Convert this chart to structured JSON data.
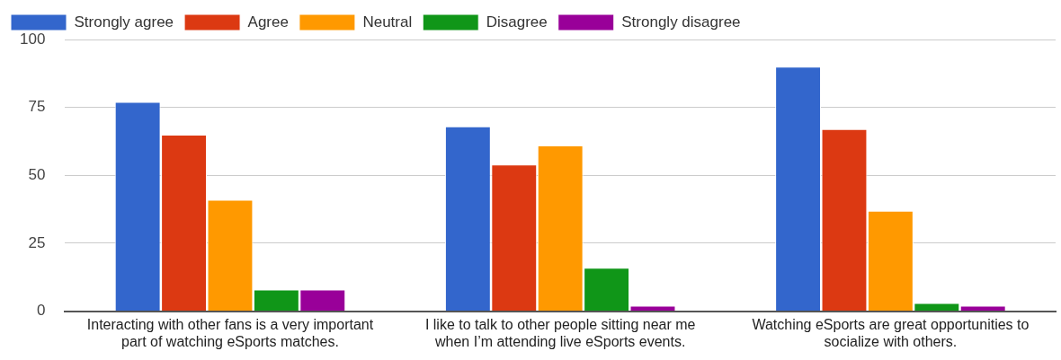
{
  "chart_data": {
    "type": "bar",
    "categories": [
      "Interacting with other fans is a very important part of watching eSports matches.",
      "I like to talk to other people sitting near me when I’m attending live eSports events.",
      "Watching eSports are great opportunities to socialize with others."
    ],
    "series": [
      {
        "name": "Strongly agree",
        "color": "#3366cc",
        "values": [
          77,
          68,
          90
        ]
      },
      {
        "name": "Agree",
        "color": "#dc3912",
        "values": [
          65,
          54,
          67
        ]
      },
      {
        "name": "Neutral",
        "color": "#ff9900",
        "values": [
          41,
          61,
          37
        ]
      },
      {
        "name": "Disagree",
        "color": "#109618",
        "values": [
          8,
          16,
          3
        ]
      },
      {
        "name": "Strongly disagree",
        "color": "#990099",
        "values": [
          8,
          2,
          2
        ]
      }
    ],
    "ylim": [
      0,
      100
    ],
    "yticks": [
      0,
      25,
      50,
      75,
      100
    ],
    "grid": "y",
    "legend": "top left"
  }
}
